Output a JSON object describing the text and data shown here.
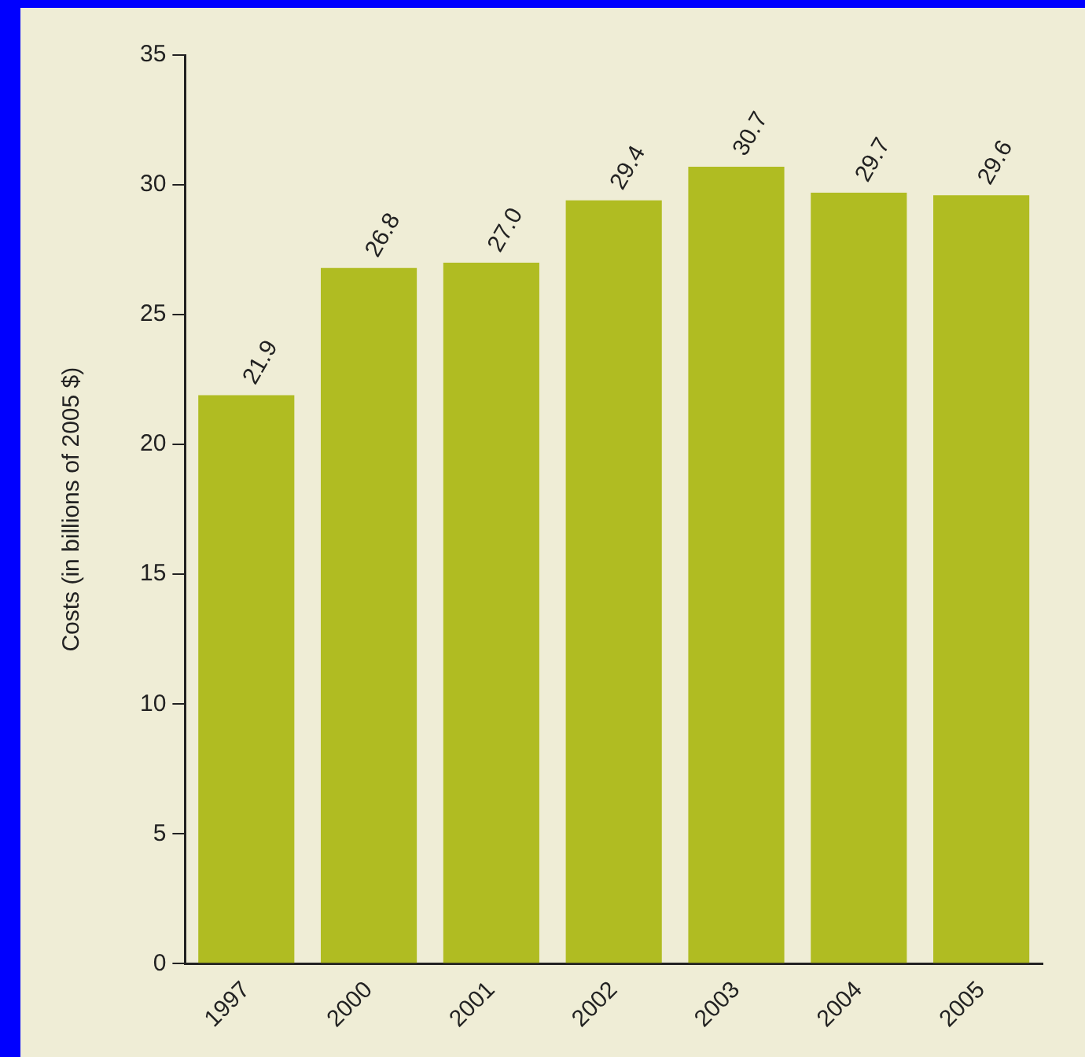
{
  "chart_data": {
    "type": "bar",
    "ylabel": "Costs (in billions of 2005 $)",
    "categories": [
      "1997",
      "2000",
      "2001",
      "2002",
      "2003",
      "2004",
      "2005"
    ],
    "values": [
      21.9,
      26.8,
      27.0,
      29.4,
      30.7,
      29.7,
      29.6
    ],
    "value_labels": [
      "21.9",
      "26.8",
      "27.0",
      "29.4",
      "30.7",
      "29.7",
      "29.6"
    ],
    "color": "#b0bc22",
    "ylim": [
      0,
      35
    ],
    "yticks": [
      0,
      5,
      10,
      15,
      20,
      25,
      30,
      35
    ],
    "grid": false,
    "legend": false
  }
}
